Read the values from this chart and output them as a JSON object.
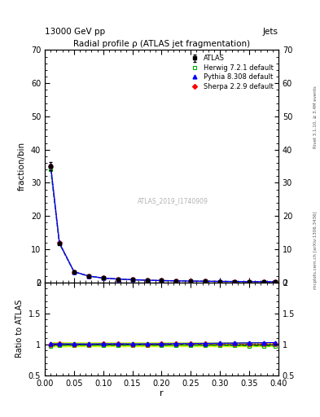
{
  "title": "Radial profile ρ (ATLAS jet fragmentation)",
  "header_left": "13000 GeV pp",
  "header_right": "Jets",
  "ylabel_main": "fraction/bin",
  "ylabel_ratio": "Ratio to ATLAS",
  "xlabel": "r",
  "right_label_top": "Rivet 3.1.10, ≥ 3.4M events",
  "right_label_bot": "mcplots.cern.ch [arXiv:1306.3436]",
  "watermark": "ATLAS_2019_I1740909",
  "ylim_main": [
    0,
    70
  ],
  "ylim_ratio": [
    0.5,
    2.0
  ],
  "yticks_main": [
    0,
    10,
    20,
    30,
    40,
    50,
    60,
    70
  ],
  "xlim": [
    0.0,
    0.4
  ],
  "r_values": [
    0.01,
    0.025,
    0.05,
    0.075,
    0.1,
    0.125,
    0.15,
    0.175,
    0.2,
    0.225,
    0.25,
    0.275,
    0.3,
    0.325,
    0.35,
    0.375,
    0.395
  ],
  "atlas_y": [
    35.0,
    11.8,
    3.2,
    1.9,
    1.3,
    1.0,
    0.8,
    0.65,
    0.54,
    0.46,
    0.39,
    0.34,
    0.29,
    0.25,
    0.22,
    0.2,
    0.18
  ],
  "atlas_yerr": [
    1.2,
    0.4,
    0.1,
    0.06,
    0.04,
    0.03,
    0.025,
    0.02,
    0.017,
    0.014,
    0.012,
    0.01,
    0.009,
    0.008,
    0.007,
    0.006,
    0.005
  ],
  "herwig_y": [
    34.0,
    11.6,
    3.15,
    1.87,
    1.28,
    0.98,
    0.79,
    0.64,
    0.53,
    0.455,
    0.385,
    0.335,
    0.285,
    0.245,
    0.215,
    0.195,
    0.175
  ],
  "pythia_y": [
    35.3,
    11.9,
    3.22,
    1.91,
    1.31,
    1.01,
    0.805,
    0.655,
    0.545,
    0.465,
    0.395,
    0.345,
    0.295,
    0.255,
    0.225,
    0.205,
    0.185
  ],
  "sherpa_y": [
    35.1,
    11.85,
    3.21,
    1.905,
    1.305,
    1.005,
    0.802,
    0.652,
    0.542,
    0.462,
    0.392,
    0.342,
    0.292,
    0.252,
    0.222,
    0.202,
    0.182
  ],
  "herwig_ratio": [
    0.97,
    0.983,
    0.984,
    0.984,
    0.985,
    0.98,
    0.988,
    0.985,
    0.981,
    0.989,
    0.987,
    0.985,
    0.983,
    0.98,
    0.977,
    0.975,
    0.972
  ],
  "pythia_ratio": [
    1.009,
    1.008,
    1.006,
    1.005,
    1.008,
    1.01,
    1.006,
    1.008,
    1.009,
    1.011,
    1.013,
    1.015,
    1.017,
    1.02,
    1.023,
    1.025,
    1.028
  ],
  "sherpa_ratio": [
    1.003,
    1.004,
    1.003,
    1.003,
    1.004,
    1.005,
    1.003,
    1.003,
    1.004,
    1.004,
    1.005,
    1.006,
    1.007,
    1.008,
    1.009,
    1.01,
    1.011
  ],
  "atlas_color": "#000000",
  "herwig_color": "#00aa00",
  "pythia_color": "#0000ff",
  "sherpa_color": "#ff0000",
  "band_color": "#ccff00",
  "background_color": "#ffffff",
  "grid_color": "#cccccc"
}
